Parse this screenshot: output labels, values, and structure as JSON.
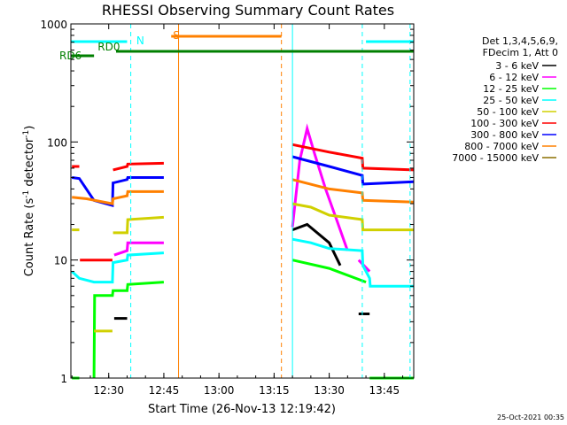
{
  "chart_data": {
    "type": "line",
    "title": "RHESSI Observing Summary Count Rates",
    "xlabel": "Start Time (26-Nov-13 12:19:42)",
    "ylabel_main": "Count Rate (s",
    "ylabel_sup1": "-1",
    "ylabel_mid": " detector",
    "ylabel_sup2": "-1",
    "ylabel_end": ")",
    "yscale": "log",
    "ylim": [
      1,
      1000
    ],
    "xlim": [
      "12:19:42",
      "13:53:00"
    ],
    "x_ticks": [
      "12:30",
      "12:45",
      "13:00",
      "13:15",
      "13:30",
      "13:45"
    ],
    "y_ticks": [
      "1",
      "10",
      "100",
      "1000"
    ],
    "legend_header": [
      "Det 1,3,4,5,6,9,",
      "FDecim 1, Att 0"
    ],
    "legend_position": "right",
    "flags": [
      {
        "label": "N",
        "color": "#00ffff",
        "segments": [
          [
            "12:19:42",
            "12:35:00"
          ],
          [
            "13:40:00",
            "13:53:00"
          ]
        ]
      },
      {
        "label": "S",
        "color": "#ff8000",
        "segments": [
          [
            "12:47:00",
            "13:17:00"
          ]
        ]
      },
      {
        "label": "RD0",
        "color": "#007f00",
        "segments": [
          [
            "12:32:00",
            "13:53:00"
          ]
        ]
      },
      {
        "label": "RD6",
        "color": "#007f00",
        "segments": [
          [
            "12:19:42",
            "12:26:00"
          ]
        ]
      }
    ],
    "vertical_markers": [
      {
        "color": "#00ffff",
        "style": "solid",
        "x": "12:19:42"
      },
      {
        "color": "#00ffff",
        "style": "dashed",
        "x": "12:36:00"
      },
      {
        "color": "#ff8000",
        "style": "solid",
        "x": "12:49:00"
      },
      {
        "color": "#ff8000",
        "style": "dashed",
        "x": "13:17:00"
      },
      {
        "color": "#00ffff",
        "style": "solid",
        "x": "13:20:00"
      },
      {
        "color": "#00ffff",
        "style": "dashed",
        "x": "13:39:00"
      },
      {
        "color": "#00ffff",
        "style": "dashed",
        "x": "13:52:00"
      }
    ],
    "series": [
      {
        "name": "3 - 6 keV",
        "color": "#000000",
        "segments": [
          [
            [
              "12:31:30",
              3.2
            ],
            [
              "12:35:00",
              3.2
            ]
          ],
          [
            [
              "13:20:00",
              18
            ],
            [
              "13:24:00",
              20
            ],
            [
              "13:30:00",
              14
            ],
            [
              "13:33:00",
              9
            ]
          ],
          [
            [
              "13:38:00",
              3.5
            ],
            [
              "13:41:00",
              3.5
            ]
          ]
        ]
      },
      {
        "name": "6 - 12 keV",
        "color": "#ff00ff",
        "segments": [
          [
            [
              "12:31:30",
              11
            ],
            [
              "12:35:00",
              12
            ],
            [
              "12:35:10",
              14
            ],
            [
              "12:45:00",
              14
            ]
          ],
          [
            [
              "13:20:00",
              19
            ],
            [
              "13:22:00",
              70
            ],
            [
              "13:24:00",
              130
            ],
            [
              "13:26:00",
              80
            ],
            [
              "13:29:00",
              40
            ],
            [
              "13:32:00",
              22
            ],
            [
              "13:35:00",
              12
            ]
          ],
          [
            [
              "13:38:00",
              10
            ],
            [
              "13:41:00",
              8
            ]
          ]
        ]
      },
      {
        "name": "12 - 25 keV",
        "color": "#00ff00",
        "segments": [
          [
            [
              "12:20:00",
              1
            ],
            [
              "12:22:00",
              1
            ]
          ],
          [
            [
              "12:26:00",
              1
            ],
            [
              "12:26:10",
              5
            ],
            [
              "12:31:00",
              5
            ],
            [
              "12:31:10",
              5.5
            ],
            [
              "12:35:00",
              5.5
            ],
            [
              "12:35:10",
              6.2
            ],
            [
              "12:45:00",
              6.5
            ]
          ],
          [
            [
              "13:20:00",
              10
            ],
            [
              "13:30:00",
              8.5
            ],
            [
              "13:40:00",
              6.5
            ]
          ],
          [
            [
              "13:41:00",
              1
            ],
            [
              "13:53:00",
              1
            ]
          ]
        ]
      },
      {
        "name": "25 - 50 keV",
        "color": "#00ffff",
        "segments": [
          [
            [
              "12:20:00",
              8
            ],
            [
              "12:22:00",
              7
            ],
            [
              "12:26:00",
              6.5
            ],
            [
              "12:31:00",
              6.5
            ],
            [
              "12:31:10",
              9.5
            ],
            [
              "12:35:00",
              10
            ],
            [
              "12:35:10",
              11
            ],
            [
              "12:45:00",
              11.5
            ]
          ],
          [
            [
              "13:20:00",
              15
            ],
            [
              "13:25:00",
              14
            ],
            [
              "13:30:00",
              12.5
            ],
            [
              "13:39:00",
              12
            ],
            [
              "13:39:10",
              9
            ],
            [
              "13:41:00",
              7
            ],
            [
              "13:41:10",
              6
            ],
            [
              "13:53:00",
              6
            ]
          ]
        ]
      },
      {
        "name": "50 - 100 keV",
        "color": "#d0d000",
        "segments": [
          [
            [
              "12:20:00",
              18
            ],
            [
              "12:22:00",
              18
            ]
          ],
          [
            [
              "12:26:00",
              2.5
            ],
            [
              "12:31:00",
              2.5
            ]
          ],
          [
            [
              "12:31:10",
              17
            ],
            [
              "12:35:00",
              17
            ],
            [
              "12:35:10",
              22
            ],
            [
              "12:45:00",
              23
            ]
          ],
          [
            [
              "13:20:00",
              30
            ],
            [
              "13:25:00",
              28
            ],
            [
              "13:30:00",
              24
            ],
            [
              "13:39:00",
              22
            ],
            [
              "13:39:10",
              18
            ],
            [
              "13:53:00",
              18
            ]
          ]
        ]
      },
      {
        "name": "100 - 300 keV",
        "color": "#ff0000",
        "segments": [
          [
            [
              "12:20:00",
              62
            ],
            [
              "12:22:00",
              62
            ]
          ],
          [
            [
              "12:22:10",
              10
            ],
            [
              "12:31:00",
              10
            ]
          ],
          [
            [
              "12:31:10",
              58
            ],
            [
              "12:35:00",
              62
            ],
            [
              "12:35:10",
              65
            ],
            [
              "12:45:00",
              66
            ]
          ],
          [
            [
              "13:20:00",
              95
            ],
            [
              "13:30:00",
              82
            ],
            [
              "13:39:00",
              73
            ],
            [
              "13:39:10",
              60
            ],
            [
              "13:53:00",
              58
            ]
          ]
        ]
      },
      {
        "name": "300 - 800 keV",
        "color": "#0000ff",
        "segments": [
          [
            [
              "12:20:00",
              50
            ],
            [
              "12:22:00",
              49
            ],
            [
              "12:26:00",
              32
            ],
            [
              "12:31:00",
              29
            ],
            [
              "12:31:10",
              45
            ],
            [
              "12:35:00",
              48
            ],
            [
              "12:35:10",
              50
            ],
            [
              "12:45:00",
              50
            ]
          ],
          [
            [
              "13:20:00",
              75
            ],
            [
              "13:30:00",
              62
            ],
            [
              "13:39:00",
              52
            ],
            [
              "13:39:10",
              44
            ],
            [
              "13:53:00",
              46
            ]
          ]
        ]
      },
      {
        "name": "800 - 7000 keV",
        "color": "#ff8000",
        "segments": [
          [
            [
              "12:20:00",
              34
            ],
            [
              "12:24:00",
              33
            ],
            [
              "12:31:00",
              30
            ],
            [
              "12:31:10",
              33
            ],
            [
              "12:35:00",
              35
            ],
            [
              "12:35:10",
              38
            ],
            [
              "12:45:00",
              38
            ]
          ],
          [
            [
              "13:20:00",
              48
            ],
            [
              "13:30:00",
              40
            ],
            [
              "13:39:00",
              37
            ],
            [
              "13:39:10",
              32
            ],
            [
              "13:53:00",
              31
            ]
          ]
        ]
      },
      {
        "name": "7000 - 15000 keV",
        "color": "#8b6f00",
        "segments": []
      }
    ]
  },
  "footer": {
    "timestamp": "25-Oct-2021 00:35"
  }
}
